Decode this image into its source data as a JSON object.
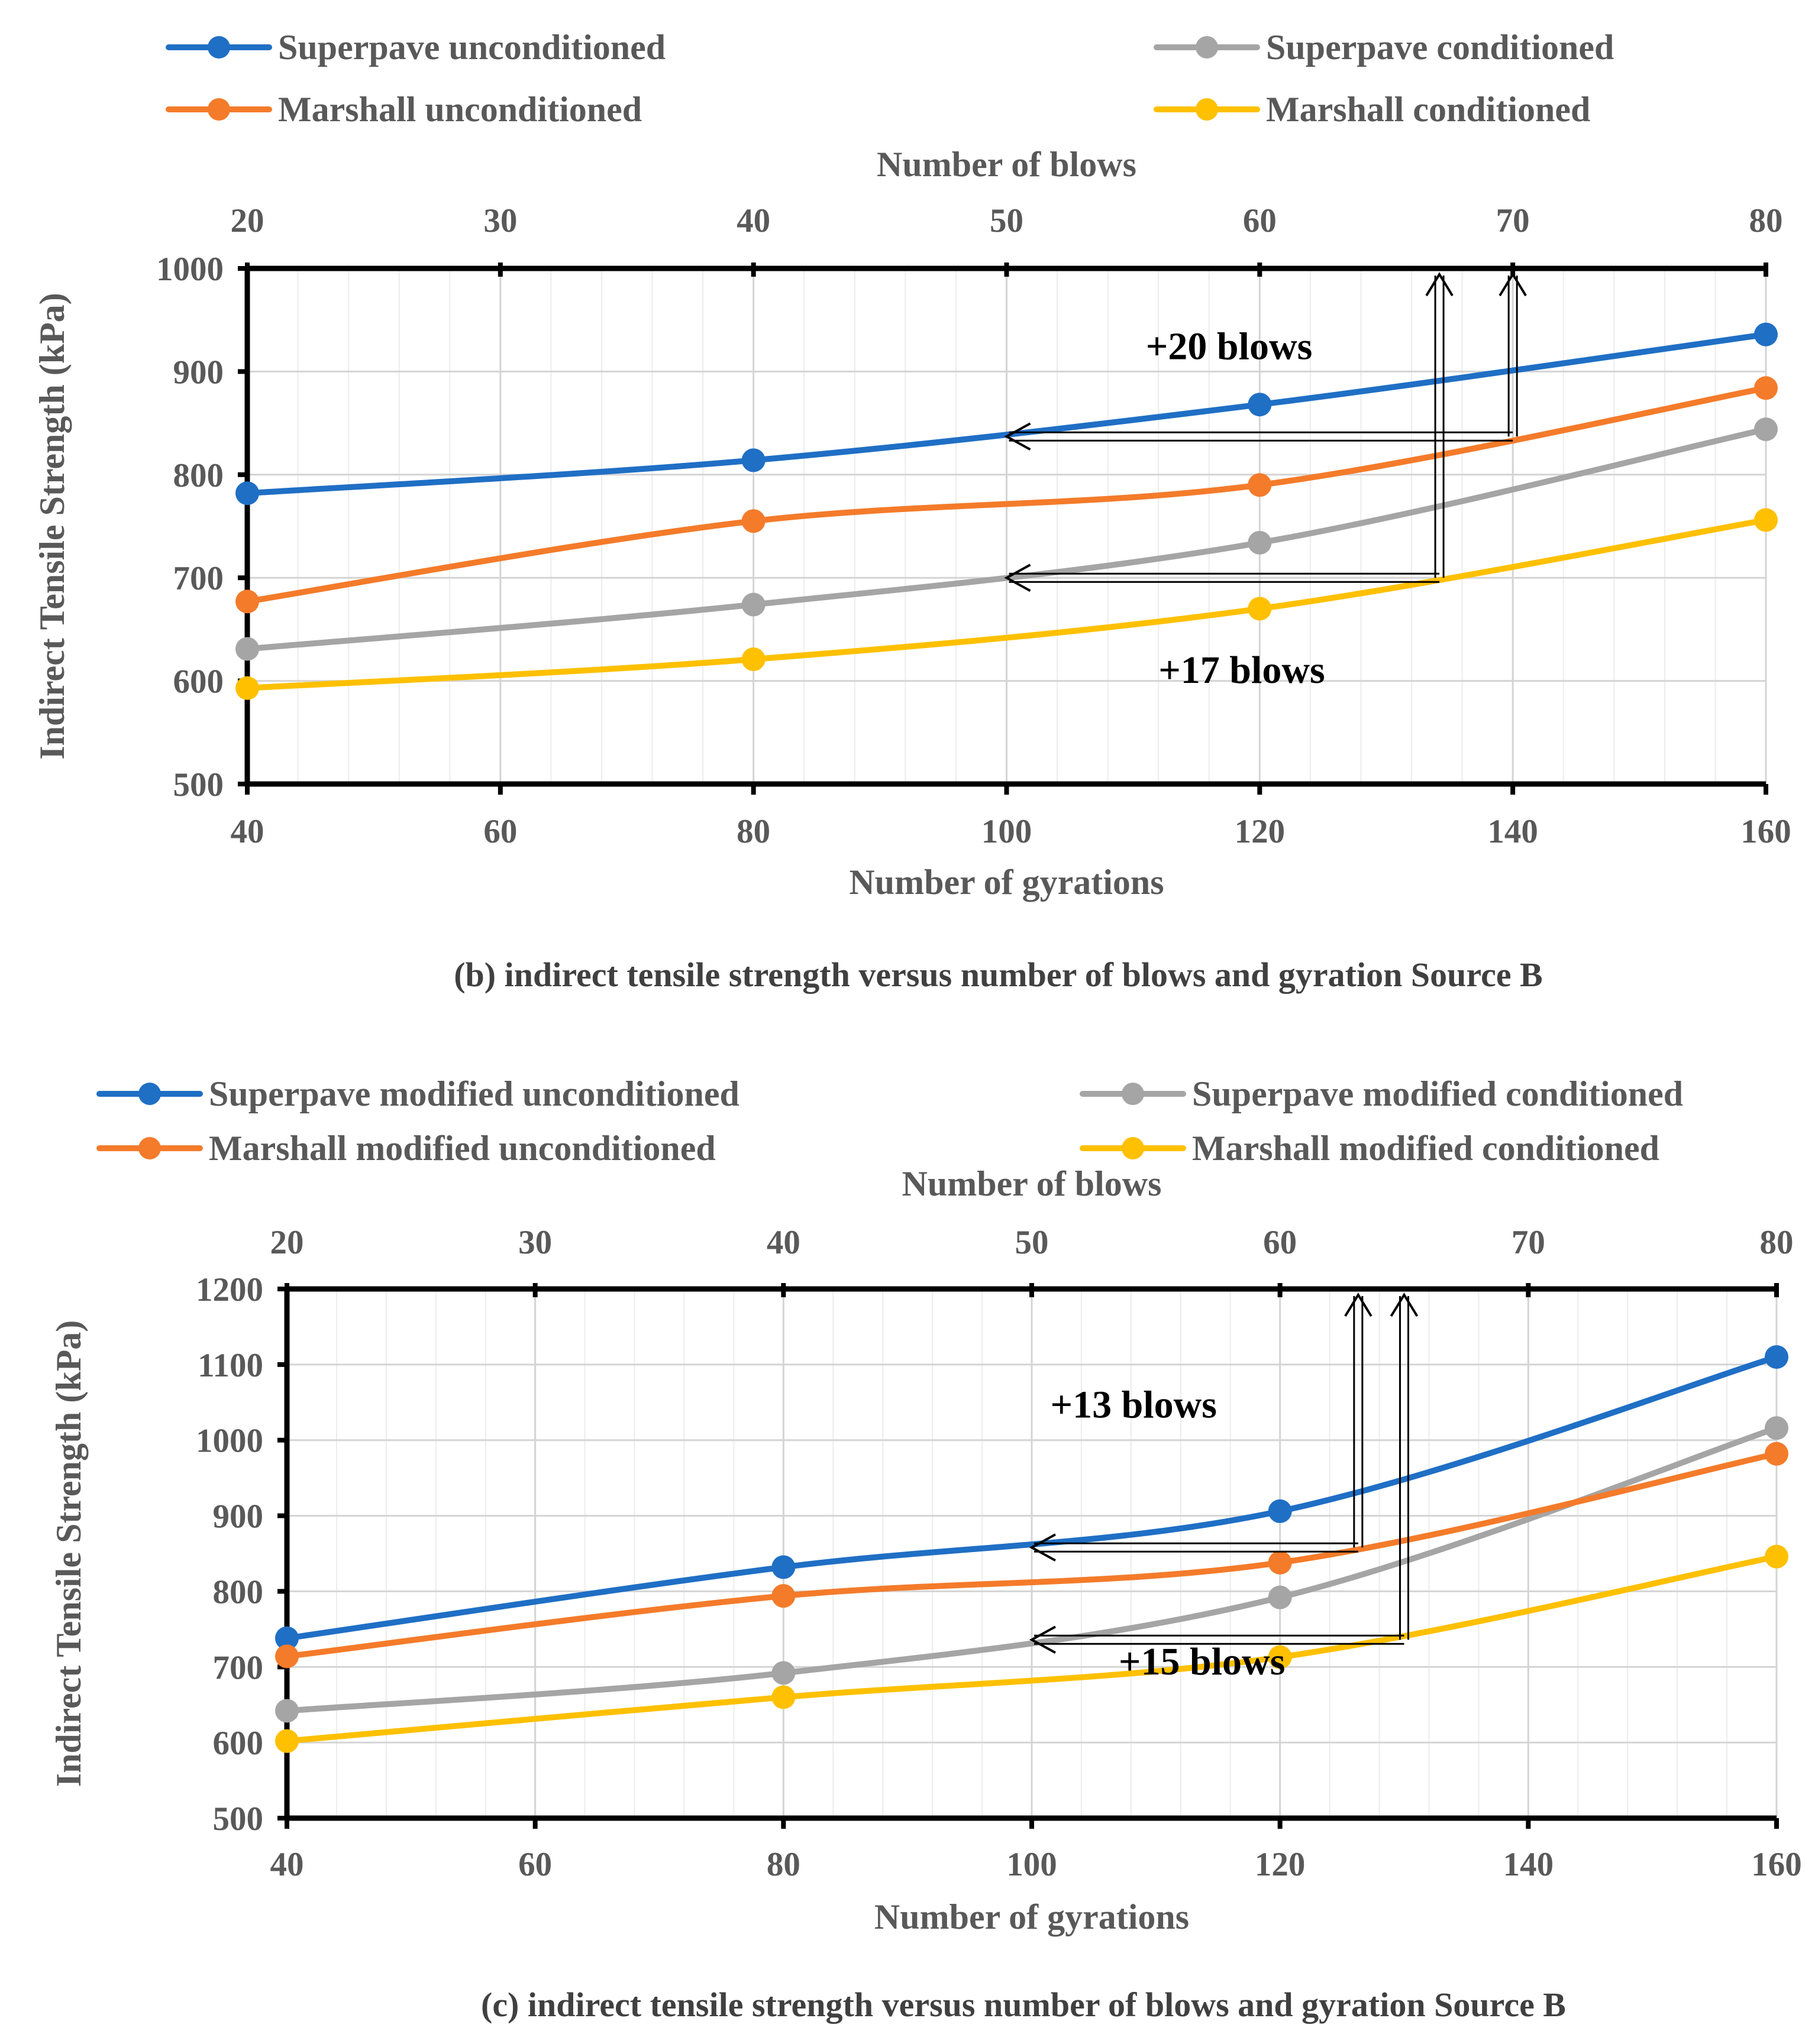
{
  "chart_data": [
    {
      "type": "line",
      "caption": "(b) indirect tensile strength versus number of blows and gyration Source B",
      "xlabel": "Number of gyrations",
      "x2label": "Number of blows",
      "ylabel": "Indirect Tensile Strength (kPa)",
      "xlim": [
        40,
        160
      ],
      "x2lim": [
        20,
        80
      ],
      "ylim": [
        500,
        1000
      ],
      "xticks": [
        "40",
        "60",
        "80",
        "100",
        "120",
        "140",
        "160"
      ],
      "x2ticks": [
        "20",
        "30",
        "40",
        "50",
        "60",
        "70",
        "80"
      ],
      "yticks": [
        "500",
        "600",
        "700",
        "800",
        "900",
        "1000"
      ],
      "x": [
        40,
        80,
        120,
        160
      ],
      "series": [
        {
          "name": "Superpave unconditioned",
          "values": [
            782,
            814,
            868,
            936
          ],
          "color": "#1F6FC5"
        },
        {
          "name": "Superpave conditioned",
          "values": [
            631,
            674,
            734,
            844
          ],
          "color": "#A5A5A5"
        },
        {
          "name": "Marshall unconditioned",
          "values": [
            677,
            755,
            790,
            884
          ],
          "color": "#F47B2A"
        },
        {
          "name": "Marshall conditioned",
          "values": [
            593,
            621,
            670,
            756
          ],
          "color": "#FFC000"
        }
      ],
      "annotations": [
        {
          "text": "+20 blows",
          "at_x": 111,
          "at_y": 912
        },
        {
          "text": "+17 blows",
          "at_x": 112,
          "at_y": 598
        }
      ],
      "arrows": [
        {
          "y": 837,
          "x_from": 140,
          "x_to": 100,
          "up_at_x": 140
        },
        {
          "y": 700,
          "x_from": 134.2,
          "x_to": 100,
          "up_at_x": 134.2
        }
      ]
    },
    {
      "type": "line",
      "caption": "(c) indirect tensile strength versus number of blows and gyration Source B",
      "xlabel": "Number of gyrations",
      "x2label": "Number of blows",
      "ylabel": "Indirect Tensile Strength (kPa)",
      "xlim": [
        40,
        160
      ],
      "x2lim": [
        20,
        80
      ],
      "ylim": [
        500,
        1200
      ],
      "xticks": [
        "40",
        "60",
        "80",
        "100",
        "120",
        "140",
        "160"
      ],
      "x2ticks": [
        "20",
        "30",
        "40",
        "50",
        "60",
        "70",
        "80"
      ],
      "yticks": [
        "500",
        "600",
        "700",
        "800",
        "900",
        "1000",
        "1100",
        "1200"
      ],
      "x": [
        40,
        80,
        120,
        160
      ],
      "series": [
        {
          "name": "Superpave modified unconditioned",
          "values": [
            738,
            832,
            906,
            1110
          ],
          "color": "#1F6FC5"
        },
        {
          "name": "Superpave modified conditioned",
          "values": [
            642,
            692,
            792,
            1016
          ],
          "color": "#A5A5A5"
        },
        {
          "name": "Marshall modified unconditioned",
          "values": [
            714,
            794,
            838,
            982
          ],
          "color": "#F47B2A"
        },
        {
          "name": "Marshall modified conditioned",
          "values": [
            602,
            660,
            713,
            846
          ],
          "color": "#FFC000"
        }
      ],
      "annotations": [
        {
          "text": "+13 blows",
          "at_x": 101.5,
          "at_y": 1030
        },
        {
          "text": "+15 blows",
          "at_x": 107,
          "at_y": 690
        }
      ],
      "arrows": [
        {
          "y": 858,
          "x_from": 126.3,
          "x_to": 100,
          "up_at_x": 126.3
        },
        {
          "y": 736,
          "x_from": 130,
          "x_to": 100,
          "up_at_x": 130
        }
      ]
    }
  ]
}
